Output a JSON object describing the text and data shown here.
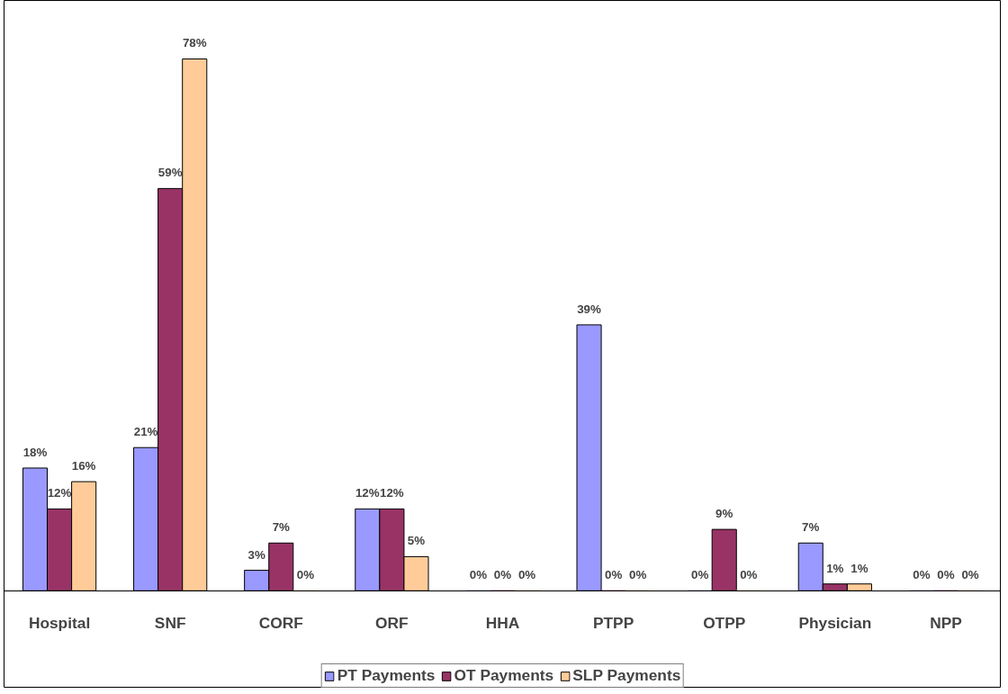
{
  "chart_data": {
    "type": "bar",
    "categories": [
      "Hospital",
      "SNF",
      "CORF",
      "ORF",
      "HHA",
      "PTPP",
      "OTPP",
      "Physician",
      "NPP"
    ],
    "series": [
      {
        "name": "PT Payments",
        "color": "#9999ff",
        "values": [
          18,
          21,
          3,
          12,
          0,
          39,
          0,
          7,
          0
        ],
        "value_labels": [
          "18%",
          "21%",
          "3%",
          "12%",
          "0%",
          "39%",
          "0%",
          "7%",
          "0%"
        ]
      },
      {
        "name": "OT Payments",
        "color": "#993366",
        "values": [
          12,
          59,
          7,
          12,
          0,
          0,
          9,
          1,
          0
        ],
        "value_labels": [
          "12%",
          "59%",
          "7%",
          "12%",
          "0%",
          "0%",
          "9%",
          "1%",
          "0%"
        ]
      },
      {
        "name": "SLP Payments",
        "color": "#ffcc99",
        "values": [
          16,
          78,
          0,
          5,
          0,
          0,
          0,
          1,
          0
        ],
        "value_labels": [
          "16%",
          "78%",
          "0%",
          "5%",
          "0%",
          "0%",
          "0%",
          "1%",
          "0%"
        ]
      }
    ],
    "grid": false,
    "legend": "bottom"
  }
}
